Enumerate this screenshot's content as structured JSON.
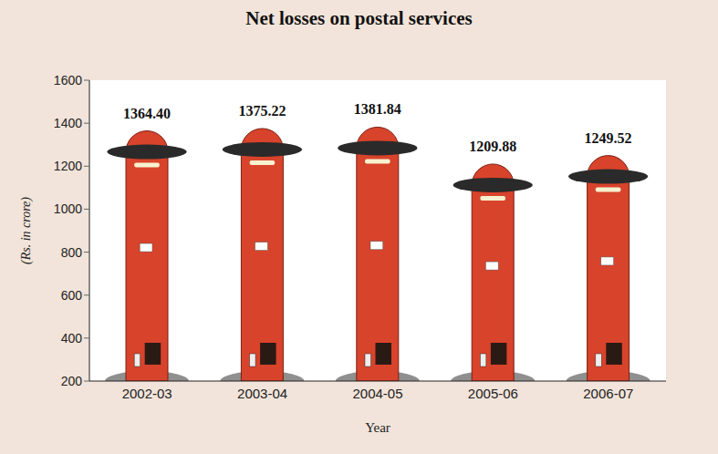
{
  "chart_data": {
    "type": "bar",
    "title": "Net losses on postal services",
    "x_label": "Year",
    "y_label": "(Rs. in crore)",
    "categories": [
      "2002-03",
      "2003-04",
      "2004-05",
      "2005-06",
      "2006-07"
    ],
    "values": [
      1364.4,
      1375.22,
      1381.84,
      1209.88,
      1249.52
    ],
    "value_labels": [
      "1364.40",
      "1375.22",
      "1381.84",
      "1209.88",
      "1249.52"
    ],
    "color": "#d8432b",
    "ylim": [
      200,
      1600
    ],
    "yticks": [
      200,
      400,
      600,
      800,
      1000,
      1200,
      1400,
      1600
    ],
    "grid": false,
    "data_labels": true
  }
}
